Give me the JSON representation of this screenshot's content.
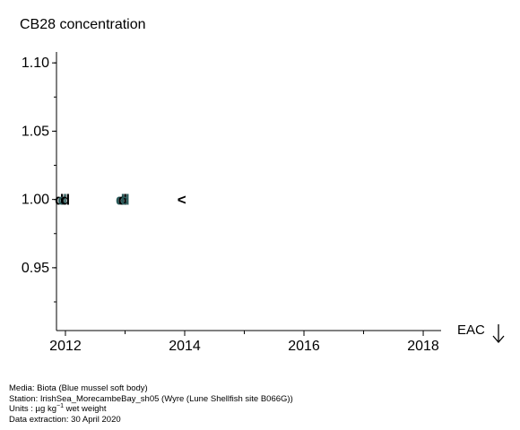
{
  "chart_data": {
    "type": "scatter",
    "title": "CB28 concentration",
    "xlabel": "",
    "ylabel": "",
    "xlim": [
      2011.85,
      2018.3
    ],
    "ylim": [
      0.904,
      1.108
    ],
    "x_ticks": [
      2012,
      2014,
      2016,
      2018
    ],
    "y_ticks": [
      0.95,
      1.0,
      1.05,
      1.1
    ],
    "y_tick_labels": [
      "0.95",
      "1.00",
      "1.05",
      "1.10"
    ],
    "grid": false,
    "points": [
      {
        "x": 2011.9,
        "y": 1.0,
        "marker": "d"
      },
      {
        "x": 2011.95,
        "y": 1.0,
        "marker": "d"
      },
      {
        "x": 2012.0,
        "y": 1.0,
        "marker": "d"
      },
      {
        "x": 2012.92,
        "y": 1.0,
        "marker": "d"
      },
      {
        "x": 2012.96,
        "y": 1.0,
        "marker": "d"
      },
      {
        "x": 2013.0,
        "y": 1.0,
        "marker": "d"
      },
      {
        "x": 2013.95,
        "y": 1.0,
        "marker": "<"
      }
    ],
    "marker_colors": [
      "#000000",
      "#2a5a5a"
    ],
    "eac_label": "EAC"
  },
  "footer": {
    "media": "Media: Biota (Blue mussel soft body)",
    "station": "Station: IrishSea_MorecambeBay_sh05 (Wyre (Lune Shellfish site B066G))",
    "units_prefix": "Units : µg kg",
    "units_sup": "−1",
    "units_suffix": " wet weight",
    "extraction": "Data extraction: 30 April 2020"
  }
}
